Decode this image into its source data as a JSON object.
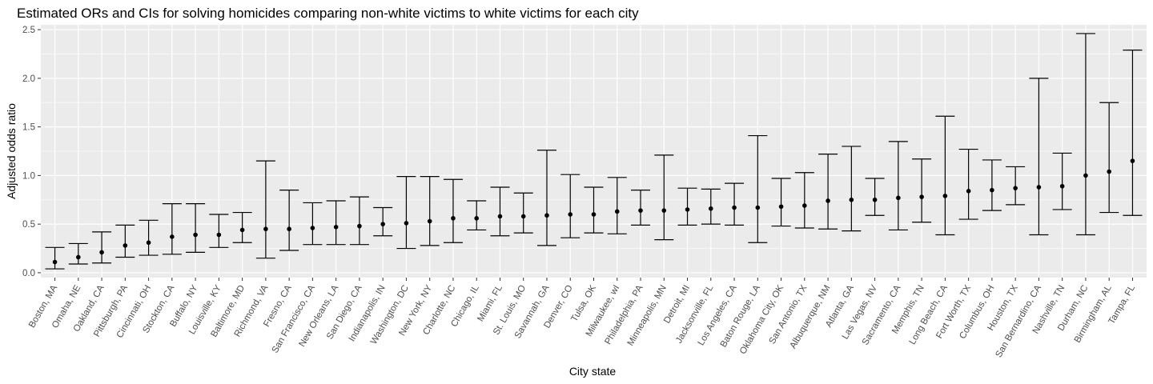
{
  "chart_data": {
    "type": "scatter",
    "title": "Estimated ORs and CIs for solving homicides comparing non-white victims to white victims for each city",
    "xlabel": "City state",
    "ylabel": "Adjusted odds ratio",
    "ylim": [
      -0.05,
      2.55
    ],
    "yticks": [
      "0.0",
      "0.5",
      "1.0",
      "1.5",
      "2.0",
      "2.5"
    ],
    "grid": true,
    "background": "#ebebeb",
    "gridline_color": "#ffffff",
    "point_color": "#000000",
    "points": [
      {
        "city": "Boston, MA",
        "or": 0.11,
        "low": 0.04,
        "high": 0.26
      },
      {
        "city": "Omaha, NE",
        "or": 0.16,
        "low": 0.09,
        "high": 0.3
      },
      {
        "city": "Oakland, CA",
        "or": 0.21,
        "low": 0.1,
        "high": 0.42
      },
      {
        "city": "Pittsburgh, PA",
        "or": 0.28,
        "low": 0.16,
        "high": 0.49
      },
      {
        "city": "Cincinnati, OH",
        "or": 0.31,
        "low": 0.18,
        "high": 0.54
      },
      {
        "city": "Stockton, CA",
        "or": 0.37,
        "low": 0.19,
        "high": 0.71
      },
      {
        "city": "Buffalo, NY",
        "or": 0.39,
        "low": 0.21,
        "high": 0.71
      },
      {
        "city": "Louisville, KY",
        "or": 0.39,
        "low": 0.26,
        "high": 0.6
      },
      {
        "city": "Baltimore, MD",
        "or": 0.44,
        "low": 0.31,
        "high": 0.62
      },
      {
        "city": "Richmond, VA",
        "or": 0.45,
        "low": 0.15,
        "high": 1.15
      },
      {
        "city": "Fresno, CA",
        "or": 0.45,
        "low": 0.23,
        "high": 0.85
      },
      {
        "city": "San Francisco, CA",
        "or": 0.46,
        "low": 0.29,
        "high": 0.72
      },
      {
        "city": "New Orleans, LA",
        "or": 0.47,
        "low": 0.29,
        "high": 0.74
      },
      {
        "city": "San Diego, CA",
        "or": 0.48,
        "low": 0.29,
        "high": 0.78
      },
      {
        "city": "Indianapolis, IN",
        "or": 0.5,
        "low": 0.38,
        "high": 0.67
      },
      {
        "city": "Washington, DC",
        "or": 0.51,
        "low": 0.25,
        "high": 0.99
      },
      {
        "city": "New York, NY",
        "or": 0.53,
        "low": 0.28,
        "high": 0.99
      },
      {
        "city": "Charlotte, NC",
        "or": 0.56,
        "low": 0.31,
        "high": 0.96
      },
      {
        "city": "Chicago, IL",
        "or": 0.56,
        "low": 0.44,
        "high": 0.74
      },
      {
        "city": "Miami, FL",
        "or": 0.58,
        "low": 0.38,
        "high": 0.88
      },
      {
        "city": "St. Louis, MO",
        "or": 0.58,
        "low": 0.41,
        "high": 0.82
      },
      {
        "city": "Savannah, GA",
        "or": 0.59,
        "low": 0.28,
        "high": 1.26
      },
      {
        "city": "Denver, CO",
        "or": 0.6,
        "low": 0.36,
        "high": 1.01
      },
      {
        "city": "Tulsa, OK",
        "or": 0.6,
        "low": 0.41,
        "high": 0.88
      },
      {
        "city": "Milwaukee, wI",
        "or": 0.63,
        "low": 0.4,
        "high": 0.98
      },
      {
        "city": "Philadelphia, PA",
        "or": 0.64,
        "low": 0.49,
        "high": 0.85
      },
      {
        "city": "Minneapolis, MN",
        "or": 0.64,
        "low": 0.34,
        "high": 1.21
      },
      {
        "city": "Detroit, MI",
        "or": 0.65,
        "low": 0.49,
        "high": 0.87
      },
      {
        "city": "Jacksonville, FL",
        "or": 0.66,
        "low": 0.5,
        "high": 0.86
      },
      {
        "city": "Los Angeles, CA",
        "or": 0.67,
        "low": 0.49,
        "high": 0.92
      },
      {
        "city": "Baton Rouge, LA",
        "or": 0.67,
        "low": 0.31,
        "high": 1.41
      },
      {
        "city": "Oklahoma City, OK",
        "or": 0.68,
        "low": 0.48,
        "high": 0.97
      },
      {
        "city": "San Antonio, TX",
        "or": 0.69,
        "low": 0.46,
        "high": 1.03
      },
      {
        "city": "Albuquerque, NM",
        "or": 0.74,
        "low": 0.45,
        "high": 1.22
      },
      {
        "city": "Atlanta, GA",
        "or": 0.75,
        "low": 0.43,
        "high": 1.3
      },
      {
        "city": "Las Vegas, NV",
        "or": 0.75,
        "low": 0.59,
        "high": 0.97
      },
      {
        "city": "Sacramento, CA",
        "or": 0.77,
        "low": 0.44,
        "high": 1.35
      },
      {
        "city": "Memphis, TN",
        "or": 0.78,
        "low": 0.52,
        "high": 1.17
      },
      {
        "city": "Long Beach, CA",
        "or": 0.79,
        "low": 0.39,
        "high": 1.61
      },
      {
        "city": "Fort Worth, TX",
        "or": 0.84,
        "low": 0.55,
        "high": 1.27
      },
      {
        "city": "Columbus, OH",
        "or": 0.85,
        "low": 0.64,
        "high": 1.16
      },
      {
        "city": "Houston, TX",
        "or": 0.87,
        "low": 0.7,
        "high": 1.09
      },
      {
        "city": "San Bernardino, CA",
        "or": 0.88,
        "low": 0.39,
        "high": 2.0
      },
      {
        "city": "Nashville, TN",
        "or": 0.89,
        "low": 0.65,
        "high": 1.23
      },
      {
        "city": "Durham, NC",
        "or": 1.0,
        "low": 0.39,
        "high": 2.46
      },
      {
        "city": "Birmingham, AL",
        "or": 1.04,
        "low": 0.62,
        "high": 1.75
      },
      {
        "city": "Tampa, FL",
        "or": 1.15,
        "low": 0.59,
        "high": 2.29
      }
    ]
  }
}
